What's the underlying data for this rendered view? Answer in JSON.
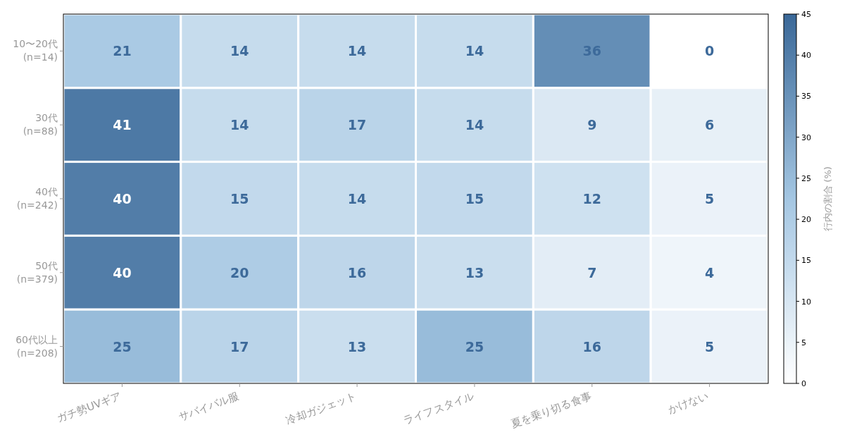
{
  "chart_data": {
    "type": "heatmap",
    "categories": [
      "ガチ勢UVギア",
      "サバイバル服",
      "冷却ガジェット",
      "ライフスタイル",
      "夏を乗り切る食事",
      "かけない"
    ],
    "y_categories": [
      "10〜20代\n(n=14)",
      "30代\n(n=88)",
      "40代\n(n=242)",
      "50代\n(n=379)",
      "60代以上\n(n=208)"
    ],
    "cells": [
      [
        21,
        14,
        14,
        14,
        36,
        0
      ],
      [
        41,
        14,
        17,
        14,
        9,
        6
      ],
      [
        40,
        15,
        14,
        15,
        12,
        5
      ],
      [
        40,
        20,
        16,
        13,
        7,
        4
      ],
      [
        25,
        17,
        13,
        25,
        16,
        5
      ]
    ],
    "clim": [
      0,
      45
    ],
    "cticks": [
      0,
      5,
      10,
      15,
      20,
      25,
      30,
      35,
      40,
      45
    ],
    "clabel": "行内の割合 (%)",
    "data_labels": true
  }
}
